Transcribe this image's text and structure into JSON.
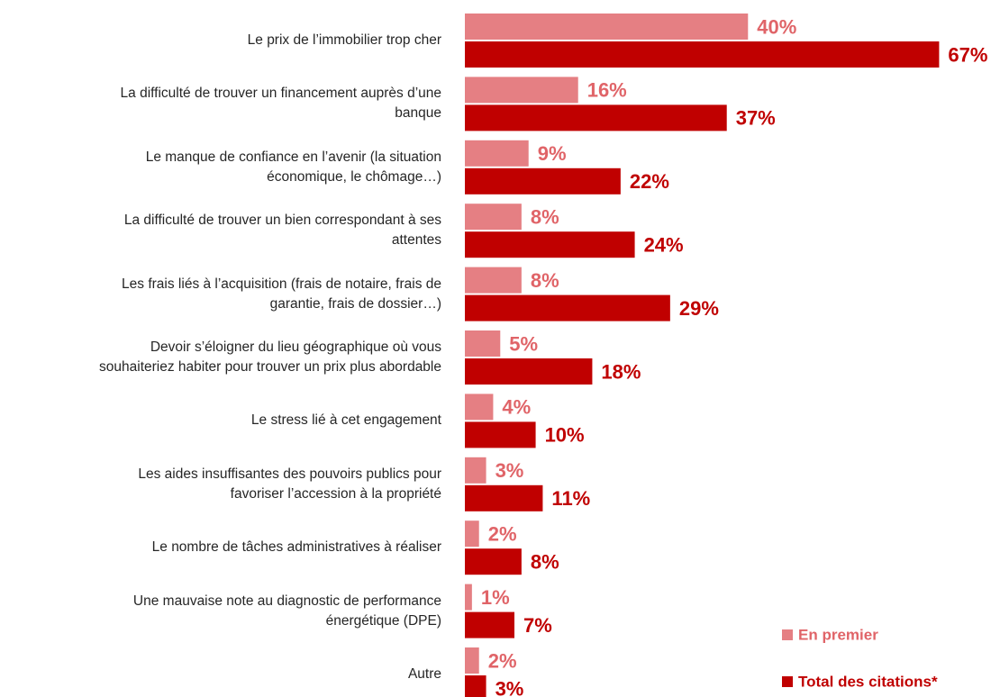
{
  "chart_data": {
    "type": "bar",
    "orientation": "horizontal",
    "categories": [
      "Le prix de l’immobilier trop cher",
      "La difficulté de trouver un financement auprès d’une\nbanque",
      "Le manque de confiance en l’avenir (la situation\néconomique, le chômage…)",
      "La difficulté de trouver un bien correspondant à ses\nattentes",
      "Les frais liés à l’acquisition (frais de notaire, frais de\ngarantie, frais de dossier…)",
      "Devoir s’éloigner du lieu géographique où vous\nsouhaiteriez habiter pour trouver un prix plus abordable",
      "Le stress lié à cet engagement",
      "Les aides insuffisantes des pouvoirs publics pour\nfavoriser l’accession à la propriété",
      "Le nombre de tâches administratives à réaliser",
      "Une mauvaise note au diagnostic de performance\nénergétique (DPE)",
      "Autre"
    ],
    "series": [
      {
        "name": "En premier",
        "color": "#e57f83",
        "label_color": "#e06468",
        "values": [
          40,
          16,
          9,
          8,
          8,
          5,
          4,
          3,
          2,
          1,
          2
        ],
        "value_labels": [
          "40%",
          "16%",
          "9%",
          "8%",
          "8%",
          "5%",
          "4%",
          "3%",
          "2%",
          "1%",
          "2%"
        ]
      },
      {
        "name": "Total des citations*",
        "color": "#c00000",
        "label_color": "#c00000",
        "values": [
          67,
          37,
          22,
          24,
          29,
          18,
          10,
          11,
          8,
          7,
          3
        ],
        "value_labels": [
          "67%",
          "37%",
          "22%",
          "24%",
          "29%",
          "18%",
          "10%",
          "11%",
          "8%",
          "7%",
          "3%"
        ]
      }
    ],
    "xlim": [
      0,
      70
    ],
    "legend": "bottom-right"
  }
}
